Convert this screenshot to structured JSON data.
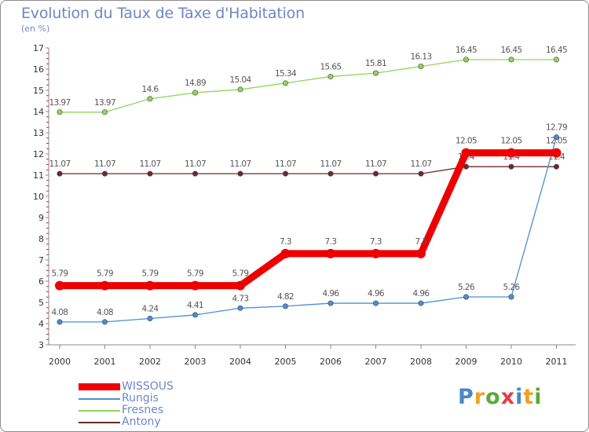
{
  "header": {
    "title": "Evolution du Taux de Taxe d'Habitation",
    "unit": "(en %)"
  },
  "logo": {
    "text": "Proxiti",
    "colors": [
      "#4a86c8",
      "#f0a020",
      "#5aaa3a",
      "#e04040",
      "#4a86c8",
      "#f0a020",
      "#5aaa3a"
    ]
  },
  "chart_data": {
    "type": "line",
    "title": "Evolution du Taux de Taxe d'Habitation",
    "ylabel": "(en %)",
    "xlabel": "",
    "ylim": [
      3,
      17
    ],
    "yticks": [
      3,
      4,
      5,
      6,
      7,
      8,
      9,
      10,
      11,
      12,
      13,
      14,
      15,
      16,
      17
    ],
    "categories": [
      "2000",
      "2001",
      "2002",
      "2003",
      "2004",
      "2005",
      "2006",
      "2007",
      "2008",
      "2009",
      "2010",
      "2011"
    ],
    "grid": false,
    "legend_position": "bottom-left",
    "series": [
      {
        "name": "Fresnes",
        "color": "#8fd65a",
        "values": [
          13.97,
          13.97,
          14.6,
          14.89,
          15.04,
          15.34,
          15.65,
          15.81,
          16.13,
          16.45,
          16.45,
          16.45
        ],
        "labels": [
          "13.97",
          "13.97",
          "14.6",
          "14.89",
          "15.04",
          "15.34",
          "15.65",
          "15.81",
          "16.13",
          "16.45",
          "16.45",
          "16.45"
        ]
      },
      {
        "name": "Antony",
        "color": "#6b2a2a",
        "values": [
          11.07,
          11.07,
          11.07,
          11.07,
          11.07,
          11.07,
          11.07,
          11.07,
          11.07,
          11.4,
          11.4,
          11.4
        ],
        "labels": [
          "11.07",
          "11.07",
          "11.07",
          "11.07",
          "11.07",
          "11.07",
          "11.07",
          "11.07",
          "11.07",
          "11.4",
          "11.4",
          "11.4"
        ]
      },
      {
        "name": "Rungis",
        "color": "#4a8fd0",
        "values": [
          4.08,
          4.08,
          4.24,
          4.41,
          4.73,
          4.82,
          4.96,
          4.96,
          4.96,
          5.26,
          5.26,
          12.79
        ],
        "labels": [
          "4.08",
          "4.08",
          "4.24",
          "4.41",
          "4.73",
          "4.82",
          "4.96",
          "4.96",
          "4.96",
          "5.26",
          "5.26",
          "12.79"
        ]
      },
      {
        "name": "WISSOUS",
        "color": "#ee0000",
        "values": [
          5.79,
          5.79,
          5.79,
          5.79,
          5.79,
          7.3,
          7.3,
          7.3,
          7.3,
          12.05,
          12.05,
          12.05
        ],
        "labels": [
          "5.79",
          "5.79",
          "5.79",
          "5.79",
          "5.79",
          "7.3",
          "7.3",
          "7.3",
          "7.3",
          "12.05",
          "12.05",
          "12.05"
        ]
      }
    ]
  },
  "legend": [
    {
      "name": "WISSOUS",
      "color": "#ee0000",
      "thick": true
    },
    {
      "name": "Rungis",
      "color": "#4a8fd0",
      "thick": false
    },
    {
      "name": "Fresnes",
      "color": "#8fd65a",
      "thick": false
    },
    {
      "name": "Antony",
      "color": "#6b2a2a",
      "thick": false
    }
  ]
}
